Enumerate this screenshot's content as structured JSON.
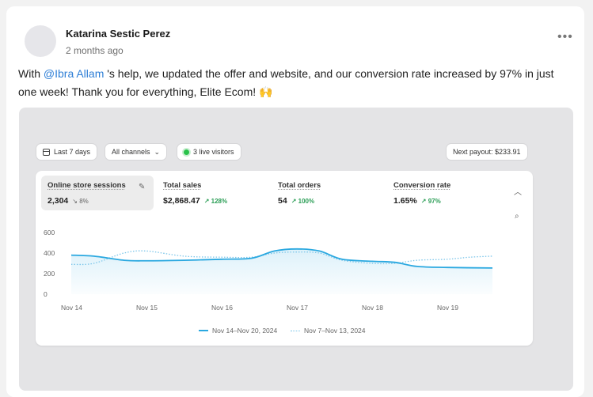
{
  "post": {
    "author": "Katarina Sestic Perez",
    "time": "2 months ago",
    "more": "•••",
    "text_before": "With ",
    "mention": "@Ibra Allam",
    "text_after": " 's help, we updated the offer and website, and our conversion rate increased by 97% in just one week! Thank you for everything, Elite Ecom! ",
    "emoji": "🙌"
  },
  "dashboard": {
    "date_range": "Last 7 days",
    "channels": "All channels",
    "live_visitors": "3 live visitors",
    "payout": "Next payout: $233.91",
    "metrics": [
      {
        "title": "Online store sessions",
        "value": "2,304",
        "change": "↘ 8%",
        "trend": "down"
      },
      {
        "title": "Total sales",
        "value": "$2,868.47",
        "change": "↗ 128%",
        "trend": "up"
      },
      {
        "title": "Total orders",
        "value": "54",
        "change": "↗ 100%",
        "trend": "up"
      },
      {
        "title": "Conversion rate",
        "value": "1.65%",
        "change": "↗ 97%",
        "trend": "up"
      }
    ],
    "icons": {
      "edit": "pencil-icon",
      "collapse": "chevron-up-icon",
      "inspect": "magnify-icon",
      "calendar": "calendar-icon",
      "live": "live-dot-icon"
    }
  },
  "chart_data": {
    "type": "line",
    "x": [
      "Nov 14",
      "Nov 15",
      "Nov 16",
      "Nov 17",
      "Nov 18",
      "Nov 19"
    ],
    "ylim": [
      0,
      600
    ],
    "yticks": [
      "600",
      "400",
      "200",
      "0"
    ],
    "grid": false,
    "legend_position": "bottom",
    "series": [
      {
        "name": "Nov 14–Nov 20, 2024",
        "color": "#2aa8e0",
        "style": "solid",
        "points": [
          [
            0,
            380
          ],
          [
            0.3,
            370
          ],
          [
            0.7,
            330
          ],
          [
            1.0,
            325
          ],
          [
            1.5,
            330
          ],
          [
            2.0,
            340
          ],
          [
            2.4,
            350
          ],
          [
            2.7,
            420
          ],
          [
            3.0,
            440
          ],
          [
            3.3,
            420
          ],
          [
            3.6,
            340
          ],
          [
            4.0,
            320
          ],
          [
            4.3,
            310
          ],
          [
            4.6,
            270
          ],
          [
            5.0,
            260
          ],
          [
            5.6,
            255
          ]
        ]
      },
      {
        "name": "Nov 7–Nov 13, 2024",
        "color": "#7cc6ea",
        "style": "dotted",
        "points": [
          [
            0,
            290
          ],
          [
            0.3,
            300
          ],
          [
            0.7,
            400
          ],
          [
            1.0,
            420
          ],
          [
            1.5,
            370
          ],
          [
            2.0,
            360
          ],
          [
            2.4,
            360
          ],
          [
            2.7,
            400
          ],
          [
            3.0,
            410
          ],
          [
            3.3,
            400
          ],
          [
            3.6,
            330
          ],
          [
            4.0,
            300
          ],
          [
            4.3,
            300
          ],
          [
            4.6,
            330
          ],
          [
            5.0,
            340
          ],
          [
            5.3,
            360
          ],
          [
            5.6,
            370
          ]
        ]
      }
    ]
  }
}
